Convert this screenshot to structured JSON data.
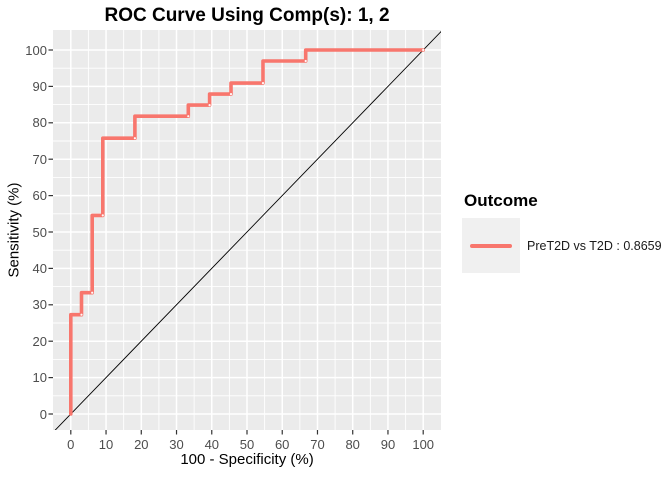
{
  "legend": {
    "title": "Outcome",
    "items": [
      {
        "label": "PreT2D vs T2D : 0.8659",
        "color": "#F8766D"
      }
    ]
  },
  "colors": {
    "curve": "#F8766D",
    "panel_bg": "#EBEBEB",
    "grid": "#FFFFFF",
    "diagonal": "#000000",
    "tick_mark": "#333333",
    "tick_text": "#4D4D4D",
    "legend_key_bg": "#F0F0F0"
  },
  "chart_data": {
    "type": "line",
    "subtype": "roc_step_curve",
    "title": "ROC Curve Using Comp(s): 1, 2",
    "xlabel": "100 - Specificity (%)",
    "ylabel": "Sensitivity (%)",
    "xlim": [
      0,
      100
    ],
    "ylim": [
      0,
      100
    ],
    "x_ticks": [
      0,
      10,
      20,
      30,
      40,
      50,
      60,
      70,
      80,
      90,
      100
    ],
    "y_ticks": [
      0,
      10,
      20,
      30,
      40,
      50,
      60,
      70,
      80,
      90,
      100
    ],
    "grid": {
      "major_every": 10,
      "minor_every": 5,
      "color": "#FFFFFF",
      "bg": "#EBEBEB"
    },
    "reference_line": {
      "type": "diagonal",
      "from": [
        0,
        0
      ],
      "to": [
        100,
        100
      ],
      "color": "#000000"
    },
    "legend_position": "right",
    "series": [
      {
        "name": "PreT2D vs T2D",
        "auc": 0.8659,
        "color": "#F8766D",
        "step_points": [
          [
            0,
            0
          ],
          [
            0,
            27.27
          ],
          [
            3.03,
            27.27
          ],
          [
            3.03,
            33.33
          ],
          [
            6.06,
            33.33
          ],
          [
            6.06,
            54.55
          ],
          [
            9.09,
            54.55
          ],
          [
            9.09,
            75.76
          ],
          [
            18.18,
            75.76
          ],
          [
            18.18,
            81.82
          ],
          [
            33.33,
            81.82
          ],
          [
            33.33,
            84.85
          ],
          [
            39.39,
            84.85
          ],
          [
            39.39,
            87.88
          ],
          [
            45.45,
            87.88
          ],
          [
            45.45,
            90.91
          ],
          [
            54.55,
            90.91
          ],
          [
            54.55,
            96.97
          ],
          [
            66.67,
            96.97
          ],
          [
            66.67,
            100
          ],
          [
            100,
            100
          ]
        ],
        "marker_points": [
          [
            3.03,
            27.27
          ],
          [
            6.06,
            33.33
          ],
          [
            9.09,
            54.55
          ],
          [
            18.18,
            75.76
          ],
          [
            33.33,
            81.82
          ],
          [
            39.39,
            84.85
          ],
          [
            45.45,
            87.88
          ],
          [
            54.55,
            90.91
          ],
          [
            66.67,
            96.97
          ],
          [
            100,
            100
          ]
        ]
      }
    ]
  }
}
